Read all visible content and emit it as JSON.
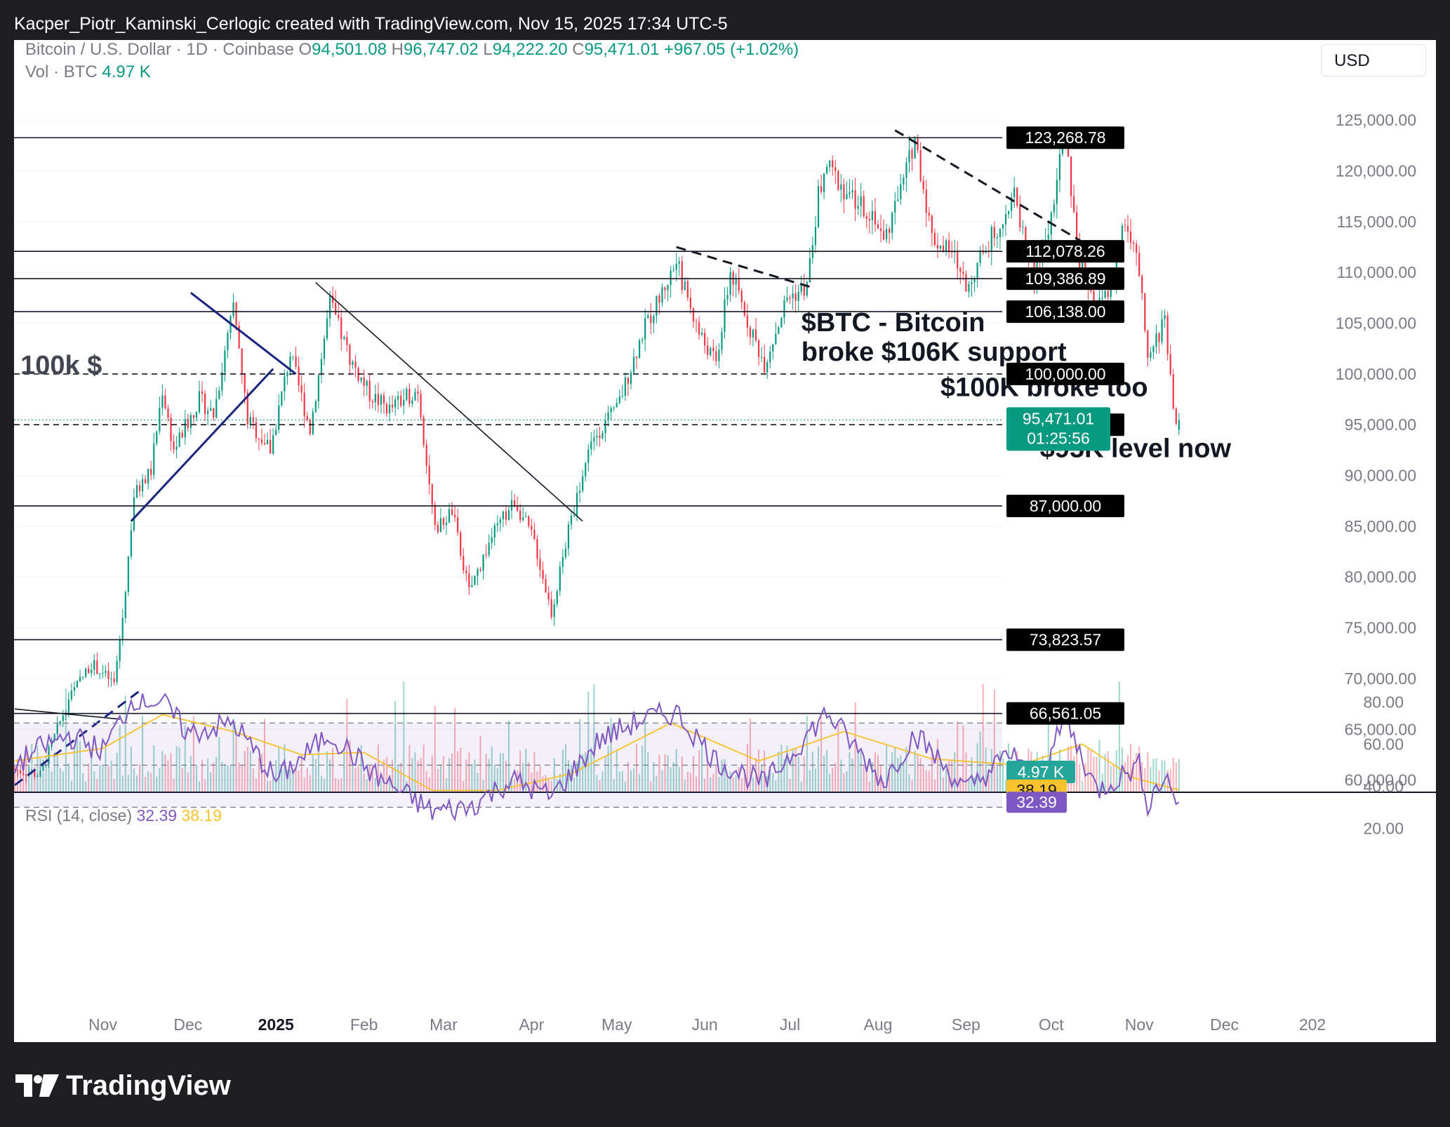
{
  "header": {
    "text": "Kacper_Piotr_Kaminski_Cerlogic created with TradingView.com, Nov 15, 2025 17:34 UTC-5"
  },
  "legend": {
    "symbol": "Bitcoin / U.S. Dollar · 1D · Coinbase",
    "o_label": "O",
    "o": "94,501.08",
    "h_label": "H",
    "h": "96,747.02",
    "l_label": "L",
    "l": "94,222.20",
    "c_label": "C",
    "c": "95,471.01",
    "change": "+967.05 (+1.02%)",
    "vol_label": "Vol · BTC",
    "vol": "4.97 K"
  },
  "currency_button": "USD",
  "rsi_legend": {
    "label": "RSI (14, close)",
    "rsi": "32.39",
    "ma": "38.19"
  },
  "logo": {
    "text": "TradingView"
  },
  "colors": {
    "up": "#089981",
    "down": "#f23645",
    "rsi": "#7e57c2",
    "rsi_ma": "#f7c22c",
    "ink": "#131722",
    "trend_blue": "#1a237e"
  },
  "chart_data": {
    "type": "candlestick",
    "symbol": "BTCUSD",
    "timeframe": "1D",
    "price_axis": {
      "ticks": [
        60000,
        65000,
        70000,
        75000,
        80000,
        85000,
        90000,
        95000,
        100000,
        105000,
        110000,
        115000,
        120000,
        125000
      ],
      "tick_labels": [
        "60,000.00",
        "65,000.00",
        "70,000.00",
        "75,000.00",
        "80,000.00",
        "85,000.00",
        "90,000.00",
        "95,000.00",
        "100,000.00",
        "105,000.00",
        "110,000.00",
        "115,000.00",
        "120,000.00",
        "125,000.00"
      ]
    },
    "time_axis": [
      "Nov",
      "Dec",
      "2025",
      "Feb",
      "Mar",
      "Apr",
      "May",
      "Jun",
      "Jul",
      "Aug",
      "Sep",
      "Oct",
      "Nov",
      "Dec",
      "202"
    ],
    "price_path": [
      [
        "2024-10-01",
        61000
      ],
      [
        "2024-10-10",
        60500
      ],
      [
        "2024-10-20",
        68000
      ],
      [
        "2024-10-28",
        71500
      ],
      [
        "2024-11-05",
        69500
      ],
      [
        "2024-11-08",
        76000
      ],
      [
        "2024-11-12",
        88000
      ],
      [
        "2024-11-18",
        90500
      ],
      [
        "2024-11-22",
        98500
      ],
      [
        "2024-11-26",
        92500
      ],
      [
        "2024-12-05",
        97500
      ],
      [
        "2024-12-10",
        96000
      ],
      [
        "2024-12-17",
        106500
      ],
      [
        "2024-12-22",
        95500
      ],
      [
        "2024-12-30",
        92500
      ],
      [
        "2025-01-06",
        102000
      ],
      [
        "2025-01-13",
        94500
      ],
      [
        "2025-01-20",
        107000
      ],
      [
        "2025-01-27",
        101500
      ],
      [
        "2025-02-03",
        98000
      ],
      [
        "2025-02-10",
        96500
      ],
      [
        "2025-02-20",
        98500
      ],
      [
        "2025-02-26",
        84500
      ],
      [
        "2025-03-04",
        86500
      ],
      [
        "2025-03-10",
        78500
      ],
      [
        "2025-03-18",
        84000
      ],
      [
        "2025-03-26",
        87500
      ],
      [
        "2025-04-02",
        83500
      ],
      [
        "2025-04-08",
        76500
      ],
      [
        "2025-04-14",
        84500
      ],
      [
        "2025-04-22",
        93500
      ],
      [
        "2025-05-01",
        96500
      ],
      [
        "2025-05-10",
        104000
      ],
      [
        "2025-05-22",
        111000
      ],
      [
        "2025-05-30",
        104000
      ],
      [
        "2025-06-05",
        101000
      ],
      [
        "2025-06-10",
        110000
      ],
      [
        "2025-06-17",
        104500
      ],
      [
        "2025-06-22",
        101000
      ],
      [
        "2025-06-30",
        107500
      ],
      [
        "2025-07-07",
        108500
      ],
      [
        "2025-07-11",
        117500
      ],
      [
        "2025-07-14",
        120500
      ],
      [
        "2025-07-22",
        117500
      ],
      [
        "2025-07-31",
        115500
      ],
      [
        "2025-08-03",
        113000
      ],
      [
        "2025-08-10",
        119000
      ],
      [
        "2025-08-14",
        123300
      ],
      [
        "2025-08-20",
        113500
      ],
      [
        "2025-08-28",
        111500
      ],
      [
        "2025-09-01",
        108500
      ],
      [
        "2025-09-10",
        113500
      ],
      [
        "2025-09-18",
        117500
      ],
      [
        "2025-09-25",
        109500
      ],
      [
        "2025-09-30",
        114000
      ],
      [
        "2025-10-06",
        124500
      ],
      [
        "2025-10-10",
        112000
      ],
      [
        "2025-10-17",
        106500
      ],
      [
        "2025-10-22",
        108500
      ],
      [
        "2025-10-27",
        115500
      ],
      [
        "2025-11-01",
        110000
      ],
      [
        "2025-11-04",
        101000
      ],
      [
        "2025-11-10",
        105500
      ],
      [
        "2025-11-14",
        94500
      ],
      [
        "2025-11-15",
        95471
      ]
    ],
    "horizontal_levels": [
      {
        "price": 123268.78,
        "label": "123,268.78",
        "style": "solid"
      },
      {
        "price": 112078.26,
        "label": "112,078.26",
        "style": "solid"
      },
      {
        "price": 109386.89,
        "label": "109,386.89",
        "style": "solid"
      },
      {
        "price": 106138.0,
        "label": "106,138.00",
        "style": "solid"
      },
      {
        "price": 100000.0,
        "label": "100,000.00",
        "style": "dashed"
      },
      {
        "price": 95000.0,
        "label": "95,000.00",
        "style": "dashed"
      },
      {
        "price": 87000.0,
        "label": "87,000.00",
        "style": "solid"
      },
      {
        "price": 73823.57,
        "label": "73,823.57",
        "style": "solid"
      },
      {
        "price": 66561.05,
        "label": "66,561.05",
        "style": "solid"
      }
    ],
    "last_price": {
      "value": 95471.01,
      "label": "95,471.01",
      "countdown": "01:25:56"
    },
    "last_volume_label": "4.97 K",
    "trendlines": [
      {
        "from": [
          "2024-10-01",
          67000
        ],
        "to": [
          "2024-11-07",
          66000
        ],
        "color": "#131722",
        "style": "solid"
      },
      {
        "from": [
          "2024-10-01",
          59500
        ],
        "to": [
          "2024-11-15",
          69000
        ],
        "color": "#1a237e",
        "style": "dashed"
      },
      {
        "from": [
          "2024-11-11",
          85500
        ],
        "to": [
          "2024-12-31",
          100500
        ],
        "color": "#1a237e",
        "style": "solid"
      },
      {
        "from": [
          "2024-12-02",
          108000
        ],
        "to": [
          "2025-01-08",
          100000
        ],
        "color": "#1a237e",
        "style": "solid"
      },
      {
        "from": [
          "2025-01-15",
          109000
        ],
        "to": [
          "2025-04-19",
          85500
        ],
        "color": "#131722",
        "style": "solid"
      },
      {
        "from": [
          "2025-05-22",
          112500
        ],
        "to": [
          "2025-07-09",
          108500
        ],
        "color": "#131722",
        "style": "dashed"
      },
      {
        "from": [
          "2025-08-07",
          124000
        ],
        "to": [
          "2025-10-12",
          113000
        ],
        "color": "#131722",
        "style": "dashed"
      }
    ],
    "annotations": [
      {
        "text": "100k $",
        "at": [
          "2024-10-03",
          100000
        ]
      },
      {
        "text": "$BTC - Bitcoin",
        "at": [
          "2025-07-05",
          104200
        ]
      },
      {
        "text": "broke $106K support",
        "at": [
          "2025-07-05",
          101300
        ]
      },
      {
        "text": "$100K broke too",
        "at": [
          "2025-08-23",
          97800
        ]
      },
      {
        "text": "$95K level now",
        "at": [
          "2025-09-27",
          91800
        ]
      }
    ],
    "volume_panel": {
      "unit": "K BTC",
      "last": 4.97
    },
    "rsi": {
      "period": 14,
      "ticks": [
        20,
        40,
        60,
        80
      ],
      "tick_labels": [
        "20.00",
        "40.00",
        "60.00",
        "80.00"
      ],
      "band": [
        30,
        70
      ],
      "mid": 50,
      "last_rsi": 32.39,
      "last_ma": 38.19,
      "rsi_path": [
        [
          "2024-10-01",
          50
        ],
        [
          "2024-10-10",
          58
        ],
        [
          "2024-10-20",
          64
        ],
        [
          "2024-11-01",
          57
        ],
        [
          "2024-11-12",
          82
        ],
        [
          "2024-11-22",
          80
        ],
        [
          "2024-12-01",
          65
        ],
        [
          "2024-12-17",
          70
        ],
        [
          "2025-01-01",
          43
        ],
        [
          "2025-01-20",
          65
        ],
        [
          "2025-02-05",
          45
        ],
        [
          "2025-02-25",
          28
        ],
        [
          "2025-03-10",
          30
        ],
        [
          "2025-03-25",
          43
        ],
        [
          "2025-04-08",
          35
        ],
        [
          "2025-04-25",
          62
        ],
        [
          "2025-05-10",
          72
        ],
        [
          "2025-05-22",
          75
        ],
        [
          "2025-06-05",
          52
        ],
        [
          "2025-06-22",
          41
        ],
        [
          "2025-07-14",
          75
        ],
        [
          "2025-08-03",
          42
        ],
        [
          "2025-08-14",
          65
        ],
        [
          "2025-09-01",
          38
        ],
        [
          "2025-09-18",
          57
        ],
        [
          "2025-09-25",
          36
        ],
        [
          "2025-10-06",
          72
        ],
        [
          "2025-10-17",
          38
        ],
        [
          "2025-11-01",
          50
        ],
        [
          "2025-11-04",
          32
        ],
        [
          "2025-11-10",
          45
        ],
        [
          "2025-11-15",
          32.39
        ]
      ],
      "ma_path": [
        [
          "2024-10-01",
          52
        ],
        [
          "2024-11-01",
          58
        ],
        [
          "2024-11-22",
          74
        ],
        [
          "2024-12-17",
          66
        ],
        [
          "2025-01-10",
          55
        ],
        [
          "2025-02-01",
          56
        ],
        [
          "2025-02-25",
          38
        ],
        [
          "2025-03-20",
          38
        ],
        [
          "2025-04-15",
          46
        ],
        [
          "2025-05-20",
          70
        ],
        [
          "2025-06-20",
          52
        ],
        [
          "2025-07-20",
          66
        ],
        [
          "2025-08-20",
          53
        ],
        [
          "2025-09-20",
          50
        ],
        [
          "2025-10-12",
          60
        ],
        [
          "2025-10-30",
          44
        ],
        [
          "2025-11-15",
          38.19
        ]
      ]
    }
  }
}
